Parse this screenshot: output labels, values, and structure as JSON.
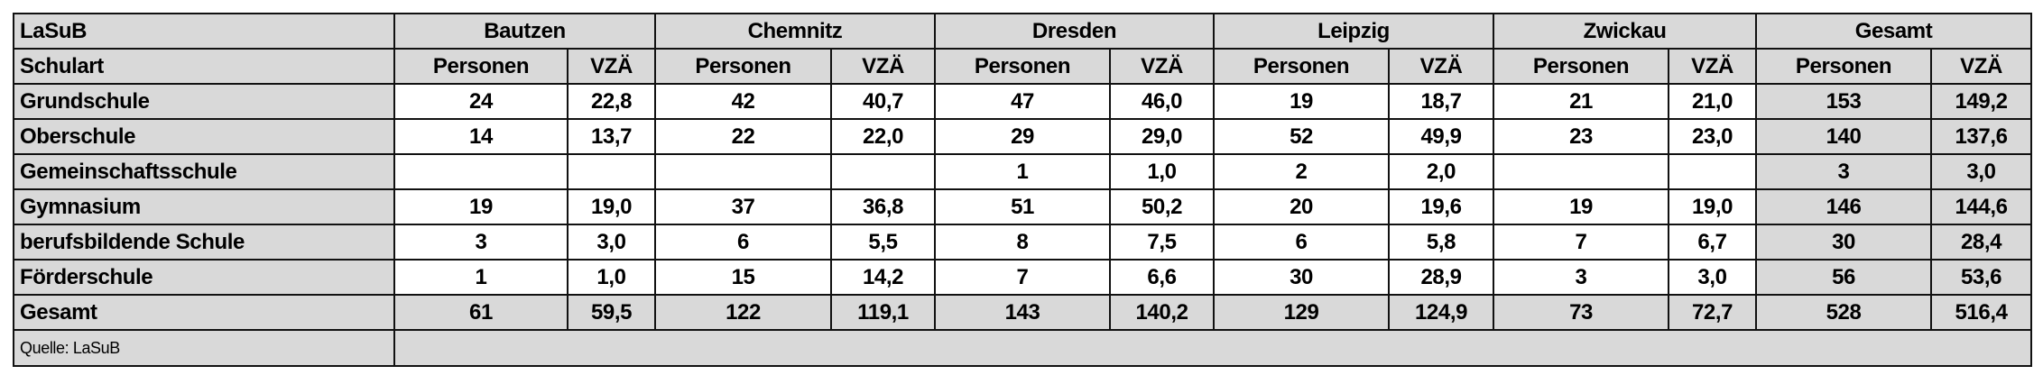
{
  "table": {
    "corner_label": "LaSuB",
    "row_header_label": "Schulart",
    "regions": [
      "Bautzen",
      "Chemnitz",
      "Dresden",
      "Leipzig",
      "Zwickau",
      "Gesamt"
    ],
    "sub_headers": [
      "Personen",
      "VZÄ"
    ],
    "rows": [
      {
        "label": "Grundschule",
        "values": [
          "24",
          "22,8",
          "42",
          "40,7",
          "47",
          "46,0",
          "19",
          "18,7",
          "21",
          "21,0",
          "153",
          "149,2"
        ]
      },
      {
        "label": "Oberschule",
        "values": [
          "14",
          "13,7",
          "22",
          "22,0",
          "29",
          "29,0",
          "52",
          "49,9",
          "23",
          "23,0",
          "140",
          "137,6"
        ]
      },
      {
        "label": "Gemeinschaftsschule",
        "values": [
          "",
          "",
          "",
          "",
          "1",
          "1,0",
          "2",
          "2,0",
          "",
          "",
          "3",
          "3,0"
        ]
      },
      {
        "label": "Gymnasium",
        "values": [
          "19",
          "19,0",
          "37",
          "36,8",
          "51",
          "50,2",
          "20",
          "19,6",
          "19",
          "19,0",
          "146",
          "144,6"
        ]
      },
      {
        "label": "berufsbildende Schule",
        "values": [
          "3",
          "3,0",
          "6",
          "5,5",
          "8",
          "7,5",
          "6",
          "5,8",
          "7",
          "6,7",
          "30",
          "28,4"
        ]
      },
      {
        "label": "Förderschule",
        "values": [
          "1",
          "1,0",
          "15",
          "14,2",
          "7",
          "6,6",
          "30",
          "28,9",
          "3",
          "3,0",
          "56",
          "53,6"
        ]
      }
    ],
    "total": {
      "label": "Gesamt",
      "values": [
        "61",
        "59,5",
        "122",
        "119,1",
        "143",
        "140,2",
        "129",
        "124,9",
        "73",
        "72,7",
        "528",
        "516,4"
      ]
    },
    "source": "Quelle: LaSuB"
  },
  "colors": {
    "header_bg": "#d9d9d9",
    "border": "#111111"
  }
}
